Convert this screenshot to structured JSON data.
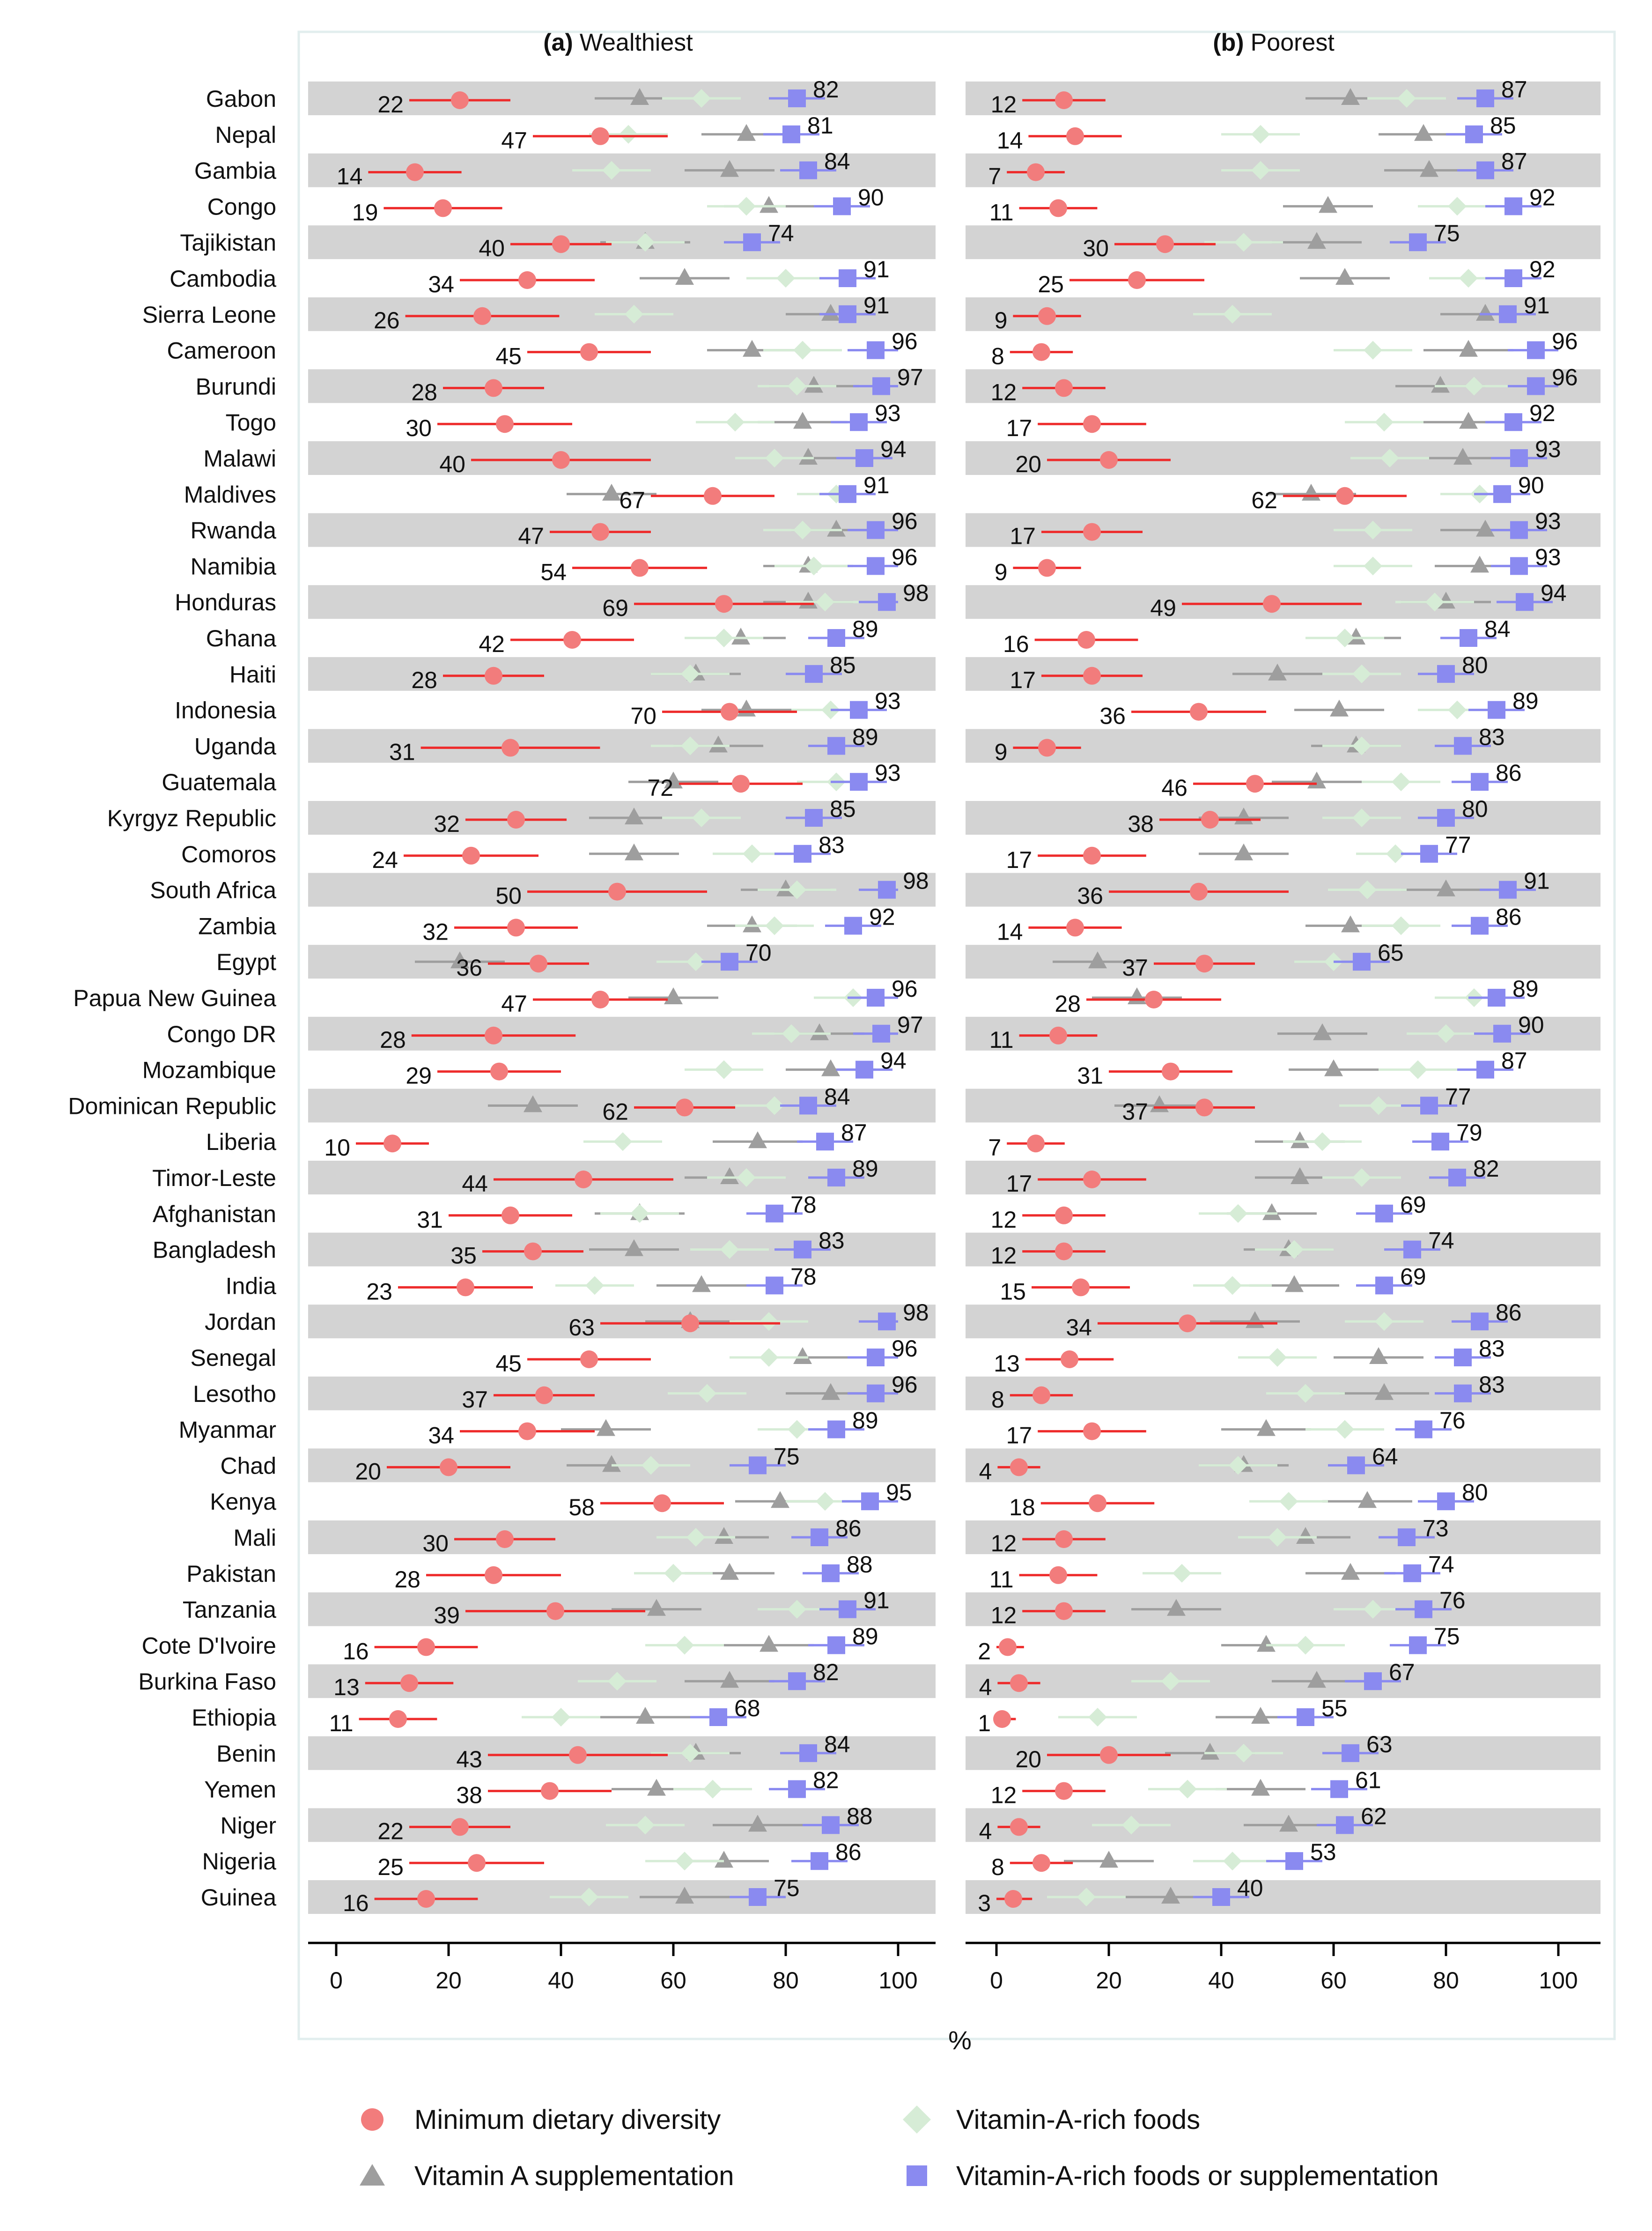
{
  "figure": {
    "x_axis_label": "%",
    "x_ticks": [
      "0",
      "20",
      "40",
      "60",
      "80",
      "100"
    ],
    "panel_a_letter": "(a)",
    "panel_a_title": "Wealthiest",
    "panel_b_letter": "(b)",
    "panel_b_title": "Poorest"
  },
  "legend": {
    "diversity": "Minimum dietary diversity",
    "vas": "Vitamin A supplementation",
    "vafoods": "Vitamin-A-rich foods",
    "either": "Vitamin-A-rich foods or supplementation"
  },
  "colors": {
    "diversity": "#f27c7c",
    "diversity_ci": "#ee2b2b",
    "vas": "#9e9e9e",
    "vafoods": "#d6ecd6",
    "either": "#8a8af0",
    "band": "#d3d3d3"
  },
  "chart_data": [
    {
      "type": "scatter",
      "panel": "(a) Wealthiest",
      "xlabel": "%",
      "xlim": [
        0,
        100
      ],
      "countries": [
        "Gabon",
        "Nepal",
        "Gambia",
        "Congo",
        "Tajikistan",
        "Cambodia",
        "Sierra Leone",
        "Cameroon",
        "Burundi",
        "Togo",
        "Malawi",
        "Maldives",
        "Rwanda",
        "Namibia",
        "Honduras",
        "Ghana",
        "Haiti",
        "Indonesia",
        "Uganda",
        "Guatemala",
        "Kyrgyz Republic",
        "Comoros",
        "South Africa",
        "Zambia",
        "Egypt",
        "Papua New Guinea",
        "Congo DR",
        "Mozambique",
        "Dominican Republic",
        "Liberia",
        "Timor-Leste",
        "Afghanistan",
        "Bangladesh",
        "India",
        "Jordan",
        "Senegal",
        "Lesotho",
        "Myanmar",
        "Chad",
        "Kenya",
        "Mali",
        "Pakistan",
        "Tanzania",
        "Cote D'Ivoire",
        "Burkina Faso",
        "Ethiopia",
        "Benin",
        "Yemen",
        "Niger",
        "Nigeria",
        "Guinea"
      ],
      "series": [
        {
          "name": "Minimum dietary diversity",
          "values": [
            22,
            47,
            14,
            19,
            40,
            34,
            26,
            45,
            28,
            30,
            40,
            67,
            47,
            54,
            69,
            42,
            28,
            70,
            31,
            72,
            32,
            24,
            50,
            32,
            36,
            47,
            28,
            29,
            62,
            10,
            44,
            31,
            35,
            23,
            63,
            45,
            37,
            34,
            20,
            58,
            30,
            28,
            39,
            16,
            13,
            11,
            43,
            38,
            22,
            25,
            16
          ]
        },
        {
          "name": "Vitamin A supplementation",
          "values": [
            54,
            73,
            70,
            77,
            55,
            62,
            88,
            74,
            85,
            83,
            84,
            49,
            89,
            84,
            84,
            72,
            64,
            73,
            68,
            60,
            53,
            53,
            80,
            74,
            22,
            60,
            86,
            88,
            35,
            75,
            70,
            54,
            53,
            65,
            63,
            83,
            88,
            48,
            49,
            79,
            69,
            70,
            57,
            77,
            70,
            55,
            64,
            57,
            75,
            69,
            62
          ]
        },
        {
          "name": "Vitamin-A-rich foods",
          "values": [
            65,
            52,
            49,
            73,
            55,
            80,
            53,
            83,
            82,
            71,
            78,
            89,
            83,
            85,
            87,
            69,
            63,
            88,
            63,
            89,
            65,
            74,
            82,
            78,
            64,
            92,
            81,
            69,
            78,
            51,
            73,
            54,
            70,
            46,
            77,
            77,
            66,
            82,
            56,
            87,
            64,
            60,
            82,
            62,
            50,
            40,
            63,
            67,
            55,
            62,
            45
          ]
        },
        {
          "name": "Vitamin-A-rich foods or supplementation",
          "values": [
            82,
            81,
            84,
            90,
            74,
            91,
            91,
            96,
            97,
            93,
            94,
            91,
            96,
            96,
            98,
            89,
            85,
            93,
            89,
            93,
            85,
            83,
            98,
            92,
            70,
            96,
            97,
            94,
            84,
            87,
            89,
            78,
            83,
            78,
            98,
            96,
            96,
            89,
            75,
            95,
            86,
            88,
            91,
            89,
            82,
            68,
            84,
            82,
            88,
            86,
            75
          ]
        }
      ]
    },
    {
      "type": "scatter",
      "panel": "(b) Poorest",
      "xlabel": "%",
      "xlim": [
        0,
        100
      ],
      "countries": [
        "Gabon",
        "Nepal",
        "Gambia",
        "Congo",
        "Tajikistan",
        "Cambodia",
        "Sierra Leone",
        "Cameroon",
        "Burundi",
        "Togo",
        "Malawi",
        "Maldives",
        "Rwanda",
        "Namibia",
        "Honduras",
        "Ghana",
        "Haiti",
        "Indonesia",
        "Uganda",
        "Guatemala",
        "Kyrgyz Republic",
        "Comoros",
        "South Africa",
        "Zambia",
        "Egypt",
        "Papua New Guinea",
        "Congo DR",
        "Mozambique",
        "Dominican Republic",
        "Liberia",
        "Timor-Leste",
        "Afghanistan",
        "Bangladesh",
        "India",
        "Jordan",
        "Senegal",
        "Lesotho",
        "Myanmar",
        "Chad",
        "Kenya",
        "Mali",
        "Pakistan",
        "Tanzania",
        "Cote D'Ivoire",
        "Burkina Faso",
        "Ethiopia",
        "Benin",
        "Yemen",
        "Niger",
        "Nigeria",
        "Guinea"
      ],
      "series": [
        {
          "name": "Minimum dietary diversity",
          "values": [
            12,
            14,
            7,
            11,
            30,
            25,
            9,
            8,
            12,
            17,
            20,
            62,
            17,
            9,
            49,
            16,
            17,
            36,
            9,
            46,
            38,
            17,
            36,
            14,
            37,
            28,
            11,
            31,
            37,
            7,
            17,
            12,
            12,
            15,
            34,
            13,
            8,
            17,
            4,
            18,
            12,
            11,
            12,
            2,
            4,
            1,
            20,
            12,
            4,
            8,
            3
          ]
        },
        {
          "name": "Vitamin A supplementation",
          "values": [
            63,
            76,
            77,
            59,
            57,
            62,
            87,
            84,
            79,
            84,
            83,
            56,
            87,
            86,
            80,
            64,
            50,
            61,
            64,
            57,
            44,
            44,
            80,
            63,
            18,
            25,
            58,
            60,
            29,
            54,
            54,
            49,
            52,
            53,
            46,
            68,
            69,
            48,
            44,
            66,
            55,
            63,
            32,
            48,
            57,
            47,
            38,
            47,
            52,
            20,
            31
          ]
        },
        {
          "name": "Vitamin-A-rich foods",
          "values": [
            73,
            47,
            47,
            82,
            44,
            84,
            42,
            67,
            85,
            69,
            70,
            86,
            67,
            67,
            78,
            62,
            65,
            82,
            65,
            72,
            65,
            71,
            66,
            72,
            60,
            85,
            80,
            75,
            68,
            58,
            65,
            43,
            53,
            42,
            69,
            50,
            55,
            62,
            43,
            52,
            50,
            33,
            67,
            55,
            31,
            18,
            44,
            34,
            24,
            42,
            16
          ]
        },
        {
          "name": "Vitamin-A-rich foods or supplementation",
          "values": [
            87,
            85,
            87,
            92,
            75,
            92,
            91,
            96,
            96,
            92,
            93,
            90,
            93,
            93,
            94,
            84,
            80,
            89,
            83,
            86,
            80,
            77,
            91,
            86,
            65,
            89,
            90,
            87,
            77,
            79,
            82,
            69,
            74,
            69,
            86,
            83,
            83,
            76,
            64,
            80,
            73,
            74,
            76,
            75,
            67,
            55,
            63,
            61,
            62,
            53,
            40
          ]
        }
      ]
    }
  ]
}
